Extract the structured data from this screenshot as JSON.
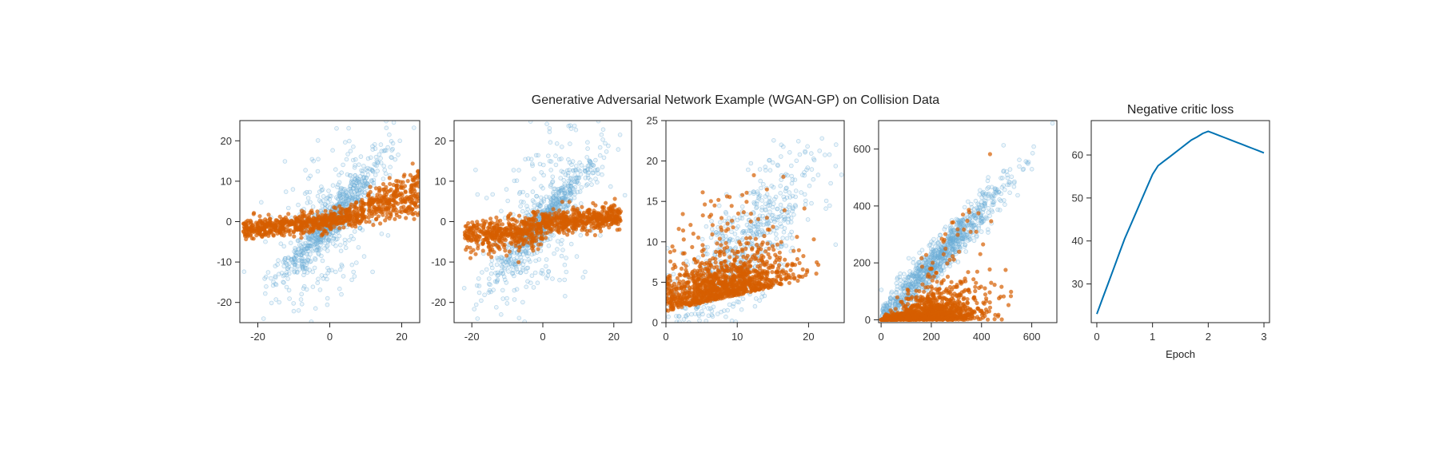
{
  "suptitle": "Generative Adversarial Network Example (WGAN-GP) on Collision Data",
  "colors": {
    "real": "#6baed6",
    "fake": "#d55e00",
    "line": "#0072b2",
    "axis": "#222222"
  },
  "chart_data": [
    {
      "type": "scatter",
      "xlim": [
        -25,
        25
      ],
      "ylim": [
        -25,
        25
      ],
      "xticks": [
        -20,
        0,
        20
      ],
      "yticks": [
        -20,
        -10,
        0,
        10,
        20
      ],
      "series": [
        {
          "role": "real",
          "style": "hollow",
          "n": 900,
          "generator": {
            "kind": "linear",
            "center": [
              0,
              0
            ],
            "slope": 1.0,
            "x_sd": 7,
            "noise_sd": 2.5,
            "outlier_frac": 0.3,
            "outlier_sd": 10
          }
        },
        {
          "role": "fake",
          "style": "filled",
          "n": 900,
          "generator": {
            "kind": "fan",
            "x_range": [
              -24,
              25
            ],
            "base": 0.08,
            "spread": 0.45,
            "noise_sd": 1.2
          }
        }
      ]
    },
    {
      "type": "scatter",
      "xlim": [
        -25,
        25
      ],
      "ylim": [
        -25,
        25
      ],
      "xticks": [
        -20,
        0,
        20
      ],
      "yticks": [
        -20,
        -10,
        0,
        10,
        20
      ],
      "series": [
        {
          "role": "real",
          "style": "hollow",
          "n": 900,
          "generator": {
            "kind": "linear",
            "center": [
              0,
              0
            ],
            "slope": 1.0,
            "x_sd": 7,
            "noise_sd": 2.5,
            "outlier_frac": 0.3,
            "outlier_sd": 10
          }
        },
        {
          "role": "fake",
          "style": "filled",
          "n": 900,
          "generator": {
            "kind": "band",
            "x_range": [
              -22,
              22
            ],
            "slope": 0.08,
            "noise_sd": 1.3,
            "neg_tail": 2.5
          }
        }
      ]
    },
    {
      "type": "scatter",
      "xlim": [
        0,
        25
      ],
      "ylim": [
        0,
        25
      ],
      "xticks": [
        0,
        10,
        20
      ],
      "yticks": [
        0,
        5,
        10,
        15,
        20,
        25
      ],
      "series": [
        {
          "role": "real",
          "style": "hollow",
          "n": 600,
          "generator": {
            "kind": "positive_linear",
            "x_mean": 11,
            "x_sd": 5,
            "slope": 0.85,
            "noise_sd": 3.5
          }
        },
        {
          "role": "fake",
          "style": "filled",
          "n": 1100,
          "generator": {
            "kind": "positive_cloud",
            "x_mean": 8,
            "x_sd": 4.5,
            "y_mean": 3,
            "y_sd": 2.2,
            "slope": 0.2
          }
        }
      ]
    },
    {
      "type": "scatter",
      "xlim": [
        -10,
        700
      ],
      "ylim": [
        -10,
        700
      ],
      "xticks": [
        0,
        200,
        400,
        600
      ],
      "yticks": [
        0,
        200,
        400,
        600
      ],
      "series": [
        {
          "role": "real",
          "style": "hollow",
          "n": 1000,
          "generator": {
            "kind": "positive_linear",
            "x_mean": 220,
            "x_sd": 140,
            "slope": 0.95,
            "noise_sd": 35
          }
        },
        {
          "role": "fake",
          "style": "filled",
          "n": 1200,
          "generator": {
            "kind": "wedge",
            "x_mean": 180,
            "x_sd": 120,
            "y_scale": 0.25
          }
        }
      ]
    },
    {
      "type": "line",
      "title": "Negative critic loss",
      "xlabel": "Epoch",
      "xlim": [
        -0.1,
        3.1
      ],
      "ylim": [
        21,
        68
      ],
      "xticks": [
        0,
        1,
        2,
        3
      ],
      "yticks": [
        30,
        40,
        50,
        60
      ],
      "series": [
        {
          "role": "line",
          "x": [
            0,
            0.1,
            0.2,
            0.3,
            0.4,
            0.5,
            0.6,
            0.7,
            0.8,
            0.9,
            1.0,
            1.1,
            1.2,
            1.3,
            1.4,
            1.5,
            1.6,
            1.7,
            1.8,
            1.9,
            2.0,
            2.1,
            2.2,
            2.3,
            2.4,
            2.5,
            2.6,
            2.7,
            2.8,
            2.9,
            3.0
          ],
          "y": [
            23,
            26.5,
            30,
            33.5,
            37,
            40.5,
            43.5,
            46.5,
            49.5,
            52.5,
            55.5,
            57.5,
            58.5,
            59.5,
            60.5,
            61.5,
            62.5,
            63.5,
            64.2,
            65.0,
            65.5,
            65.0,
            64.5,
            64.0,
            63.5,
            63.0,
            62.5,
            62.0,
            61.5,
            61.0,
            60.5
          ]
        }
      ]
    }
  ]
}
